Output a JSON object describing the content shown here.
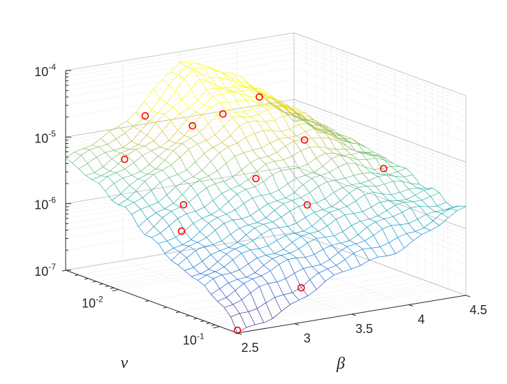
{
  "chart_data": {
    "type": "surface",
    "title": "",
    "xlabel": "β",
    "ylabel": "ν",
    "zlabel": "",
    "x_axis": {
      "name": "beta",
      "range": [
        2.5,
        4.5
      ],
      "ticks": [
        "2.5",
        "3",
        "3.5",
        "4",
        "4.5"
      ]
    },
    "y_axis": {
      "name": "nu",
      "scale": "log",
      "range": [
        0.003,
        0.15
      ],
      "ticks": [
        {
          "base": "10",
          "exp": "-2",
          "value": 0.01
        },
        {
          "base": "10",
          "exp": "-1",
          "value": 0.1
        }
      ]
    },
    "z_axis": {
      "scale": "log",
      "range": [
        1e-07,
        0.0001
      ],
      "ticks": [
        {
          "base": "10",
          "exp": "-7",
          "value": 1e-07
        },
        {
          "base": "10",
          "exp": "-6",
          "value": 1e-06
        },
        {
          "base": "10",
          "exp": "-5",
          "value": 1e-05
        },
        {
          "base": "10",
          "exp": "-4",
          "value": 0.0001
        }
      ]
    },
    "grid": true,
    "box": true,
    "colormap": "parula",
    "surface_style": "mesh",
    "marker_color": "#ff0000",
    "surface_samples": {
      "beta": [
        2.5,
        3.0,
        3.5,
        4.0,
        4.5
      ],
      "nu": [
        0.003,
        0.01,
        0.03,
        0.1,
        0.15
      ],
      "values": [
        [
          5e-06,
          2e-06,
          6e-07,
          2.5e-07,
          1e-07
        ],
        [
          1e-05,
          6e-06,
          1.5e-06,
          5e-07,
          2e-07
        ],
        [
          8e-05,
          2e-05,
          3e-06,
          8e-07,
          5e-07
        ],
        [
          3e-05,
          2e-05,
          6e-06,
          1.5e-06,
          8e-07
        ],
        [
          5e-06,
          5e-06,
          4e-06,
          2e-06,
          2e-06
        ]
      ]
    },
    "markers": [
      {
        "beta": 2.5,
        "nu": 0.15,
        "value": 1.1e-07
      },
      {
        "beta": 2.7,
        "nu": 0.025,
        "value": 1.1e-06
      },
      {
        "beta": 2.82,
        "nu": 0.005,
        "value": 5e-06
      },
      {
        "beta": 3.3,
        "nu": 0.08,
        "value": 2e-07
      },
      {
        "beta": 3.0,
        "nu": 0.012,
        "value": 1.5e-06
      },
      {
        "beta": 3.0,
        "nu": 0.005,
        "value": 2e-05
      },
      {
        "beta": 3.4,
        "nu": 0.022,
        "value": 4e-06
      },
      {
        "beta": 3.5,
        "nu": 0.008,
        "value": 2e-05
      },
      {
        "beta": 3.5,
        "nu": 0.004,
        "value": 9e-06
      },
      {
        "beta": 3.85,
        "nu": 0.022,
        "value": 1.2e-06
      },
      {
        "beta": 4.0,
        "nu": 0.014,
        "value": 8e-06
      },
      {
        "beta": 4.0,
        "nu": 0.005,
        "value": 2e-05
      },
      {
        "beta": 4.4,
        "nu": 0.03,
        "value": 3.5e-06
      }
    ]
  }
}
